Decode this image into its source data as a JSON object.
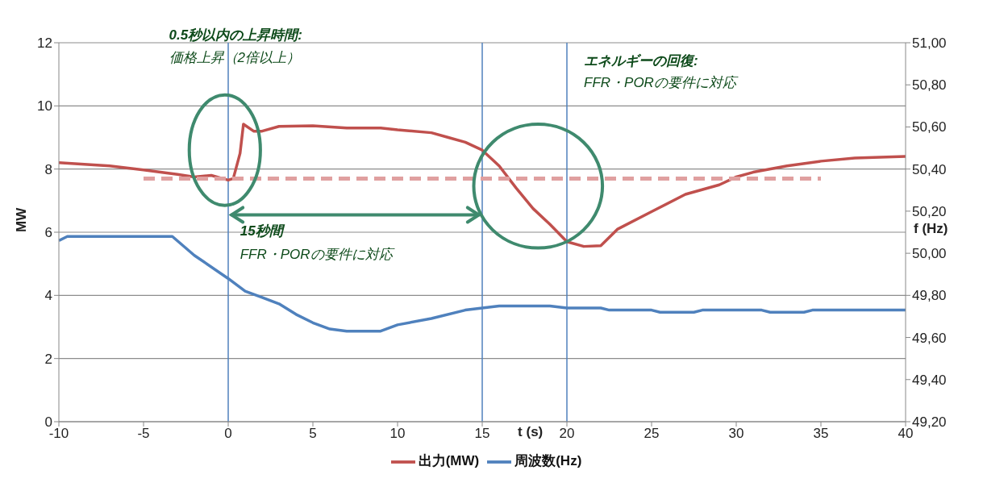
{
  "chart_data": {
    "type": "line",
    "xlabel": "t (s)",
    "ylabel": "MW",
    "y2label": "f (Hz)",
    "xlim": [
      -10,
      40
    ],
    "xticks": [
      -10,
      -5,
      0,
      5,
      10,
      15,
      20,
      25,
      30,
      35,
      40
    ],
    "ylim": [
      0,
      12
    ],
    "yticks": [
      0,
      2,
      4,
      6,
      8,
      10,
      12
    ],
    "y2lim": [
      49.2,
      51
    ],
    "y2ticks": [
      {
        "value": 49.2,
        "label": "49,20"
      },
      {
        "value": 49.4,
        "label": "49,40"
      },
      {
        "value": 49.6,
        "label": "49,60"
      },
      {
        "value": 49.8,
        "label": "49,80"
      },
      {
        "value": 50,
        "label": "50,00"
      },
      {
        "value": 50.2,
        "label": "50,20"
      },
      {
        "value": 50.4,
        "label": "50,40"
      },
      {
        "value": 50.6,
        "label": "50,60"
      },
      {
        "value": 50.8,
        "label": "50,80"
      },
      {
        "value": 51,
        "label": "51,00"
      }
    ],
    "grid": "y",
    "legend": "bottom",
    "marker": "none",
    "line_style": "solid",
    "series": [
      {
        "name": "出力(MW)",
        "color": "#c0504d",
        "x": [
          -10,
          -7,
          -5,
          -3,
          -2,
          -1,
          0,
          0.3,
          0.7,
          0.9,
          1.5,
          2,
          3,
          5,
          7,
          9,
          10,
          12,
          13,
          14,
          15,
          16,
          17,
          18,
          19,
          20,
          21,
          22,
          23,
          25,
          27,
          29,
          30,
          31,
          33,
          35,
          37,
          40
        ],
        "values": [
          8.2,
          8.1,
          7.97,
          7.83,
          7.75,
          7.8,
          7.65,
          7.7,
          8.5,
          9.42,
          9.2,
          9.2,
          9.35,
          9.37,
          9.3,
          9.3,
          9.24,
          9.15,
          9.0,
          8.85,
          8.6,
          8.1,
          7.4,
          6.75,
          6.25,
          5.7,
          5.55,
          5.57,
          6.1,
          6.65,
          7.2,
          7.5,
          7.75,
          7.9,
          8.1,
          8.25,
          8.35,
          8.4
        ]
      },
      {
        "name": "周波数(Hz)",
        "color": "#4f81bd",
        "axis": "y2",
        "x": [
          -10,
          -9.5,
          -3.3,
          -2,
          0,
          1,
          2,
          3,
          4,
          5,
          6,
          7,
          9,
          10,
          12,
          14,
          15,
          16,
          19,
          20,
          22,
          22.5,
          25,
          25.5,
          27.5,
          28,
          31.5,
          32,
          34,
          34.5,
          40
        ],
        "values": [
          50.06,
          50.08,
          50.08,
          49.99,
          49.88,
          49.82,
          49.79,
          49.76,
          49.71,
          49.67,
          49.64,
          49.63,
          49.63,
          49.66,
          49.69,
          49.73,
          49.74,
          49.75,
          49.75,
          49.74,
          49.74,
          49.73,
          49.73,
          49.72,
          49.72,
          49.73,
          49.73,
          49.72,
          49.72,
          49.73,
          49.73
        ]
      },
      {
        "type": "line",
        "color": "#e0a0a0",
        "line_style": "dashed",
        "x": [
          -5,
          35
        ],
        "values": [
          7.7,
          7.7
        ]
      }
    ],
    "ref_lines": [
      {
        "axis": "x",
        "value": 0,
        "color": "#4f81bd"
      },
      {
        "axis": "x",
        "value": 15,
        "color": "#4f81bd"
      },
      {
        "axis": "x",
        "value": 20,
        "color": "#4f81bd"
      }
    ],
    "annotations": [
      "0.5秒以内の上昇時間:",
      "価格上昇（2倍以上）",
      "エネルギーの回復:",
      "FFR・PORの要件に対応",
      "15秒間",
      "FFR・PORの要件に対応"
    ]
  }
}
